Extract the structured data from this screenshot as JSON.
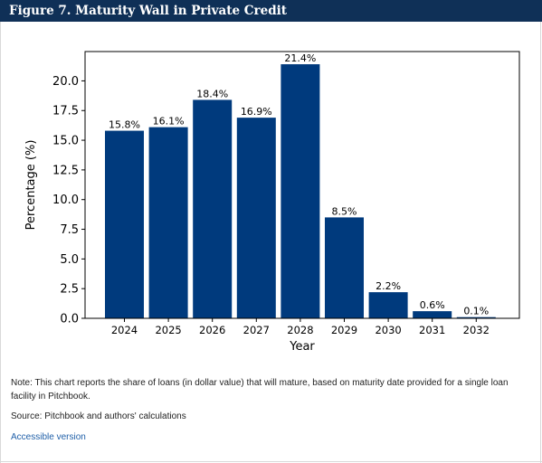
{
  "figure_title": "Figure 7. Maturity Wall in Private Credit",
  "note": "Note: This chart reports the share of loans (in dollar value) that will mature, based on maturity date provided for a single loan facility in Pitchbook.",
  "source": "Source: Pitchbook and authors' calculations",
  "accessible_link": "Accessible version",
  "colors": {
    "bar": "#003a7d",
    "header": "#0f3057",
    "link": "#1f5fa8"
  },
  "chart_data": {
    "type": "bar",
    "categories": [
      "2024",
      "2025",
      "2026",
      "2027",
      "2028",
      "2029",
      "2030",
      "2031",
      "2032"
    ],
    "values": [
      15.8,
      16.1,
      18.4,
      16.9,
      21.4,
      8.5,
      2.2,
      0.6,
      0.1
    ],
    "data_labels": [
      "15.8%",
      "16.1%",
      "18.4%",
      "16.9%",
      "21.4%",
      "8.5%",
      "2.2%",
      "0.6%",
      "0.1%"
    ],
    "xlabel": "Year",
    "ylabel": "Percentage (%)",
    "ylim": [
      0,
      22.47
    ],
    "yticks": [
      "0.0",
      "2.5",
      "5.0",
      "7.5",
      "10.0",
      "12.5",
      "15.0",
      "17.5",
      "20.0"
    ],
    "grid": false,
    "legend": "none"
  }
}
